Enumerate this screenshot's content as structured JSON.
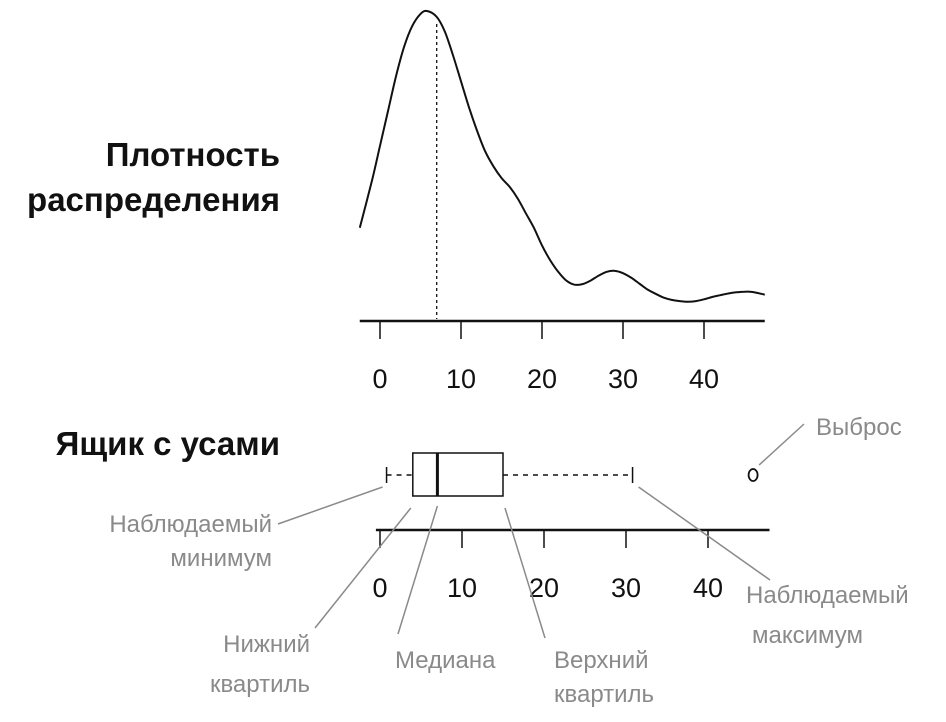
{
  "chart_data": [
    {
      "type": "line",
      "panel_label_lines": [
        "Плотность",
        "распределения"
      ],
      "xlim": [
        -2.5,
        47.5
      ],
      "xticks": [
        0,
        10,
        20,
        30,
        40
      ],
      "median_marker": 7,
      "series": [
        {
          "x": [
            -2.5,
            -1,
            0,
            1,
            2,
            3,
            4,
            5,
            5.8,
            7,
            8,
            9,
            10,
            11,
            12,
            13,
            14,
            15,
            16,
            17,
            18,
            19,
            20,
            21,
            22,
            23,
            24,
            25,
            26,
            27,
            28,
            29,
            30,
            31,
            32,
            33,
            34,
            35,
            36,
            37,
            38,
            39,
            40,
            41,
            42,
            43,
            44,
            45,
            46,
            47.5
          ],
          "y": [
            0.26,
            0.42,
            0.54,
            0.66,
            0.78,
            0.88,
            0.95,
            0.99,
            1.0,
            0.98,
            0.93,
            0.85,
            0.76,
            0.67,
            0.59,
            0.52,
            0.47,
            0.43,
            0.4,
            0.36,
            0.31,
            0.26,
            0.2,
            0.15,
            0.11,
            0.08,
            0.066,
            0.068,
            0.08,
            0.097,
            0.11,
            0.113,
            0.105,
            0.09,
            0.07,
            0.05,
            0.035,
            0.022,
            0.014,
            0.01,
            0.008,
            0.01,
            0.016,
            0.024,
            0.03,
            0.036,
            0.04,
            0.042,
            0.041,
            0.032
          ]
        }
      ]
    },
    {
      "type": "box",
      "panel_label": "Ящик с усами",
      "xlim": [
        -0.5,
        47.5
      ],
      "xticks": [
        0,
        10,
        20,
        30,
        40
      ],
      "whisker_min": 0.8,
      "q1": 4,
      "median": 7,
      "q3": 15,
      "whisker_max": 30.8,
      "outliers": [
        45.5
      ],
      "annotations": {
        "outlier": "Выброс",
        "min": [
          "Наблюдаемый",
          "минимум"
        ],
        "max": [
          "Наблюдаемый",
          "максимум"
        ],
        "q1": [
          "Нижний",
          "квартиль"
        ],
        "median": "Медиана",
        "q3": [
          "Верхний",
          "квартиль"
        ]
      }
    }
  ]
}
